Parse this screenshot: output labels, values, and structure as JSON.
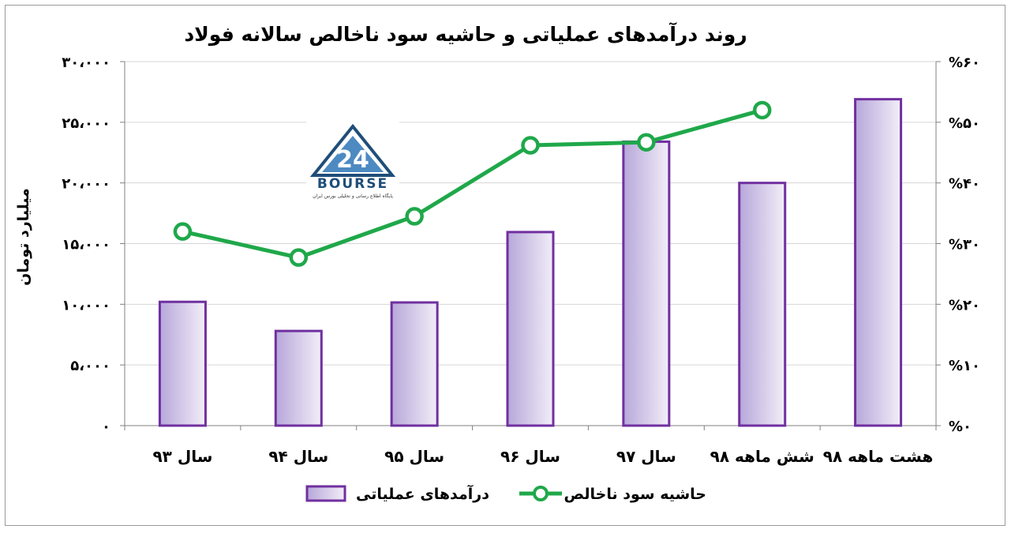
{
  "chart_data": {
    "type": "bar+line",
    "title": "روند درآمدهای عملیاتی و حاشیه سود ناخالص سالانه فولاد",
    "ylabel_left": "میلیارد تومان",
    "ylabel_right": "",
    "categories": [
      "سال ۹۳",
      "سال ۹۴",
      "سال ۹۵",
      "سال ۹۶",
      "سال ۹۷",
      "شش ماهه ۹۸",
      "هشت ماهه ۹۸"
    ],
    "left_ticks": [
      "۰",
      "۵،۰۰۰",
      "۱۰،۰۰۰",
      "۱۵،۰۰۰",
      "۲۰،۰۰۰",
      "۲۵،۰۰۰",
      "۳۰،۰۰۰"
    ],
    "right_ticks": [
      "%۰",
      "%۱۰",
      "%۲۰",
      "%۳۰",
      "%۴۰",
      "%۵۰",
      "%۶۰"
    ],
    "ylim_left": [
      0,
      30000
    ],
    "ylim_right": [
      0,
      0.6
    ],
    "grid": true,
    "legend_position": "bottom",
    "series": [
      {
        "name": "درآمدهای عملیاتی",
        "type": "bar",
        "axis": "left",
        "values": [
          10200,
          7800,
          10150,
          15950,
          23400,
          20000,
          26900
        ]
      },
      {
        "name": "حاشیه سود ناخالص",
        "type": "line",
        "axis": "right",
        "values": [
          0.32,
          0.277,
          0.345,
          0.462,
          0.467,
          0.52,
          null
        ]
      }
    ],
    "colors": {
      "bar_border": "#7030a0",
      "bar_fill_light": "#f2eef8",
      "bar_fill_dark": "#b7a7da",
      "line": "#1fa84a",
      "marker_fill": "#ffffff",
      "grid": "#d6d6d6",
      "axis": "#808080"
    }
  },
  "watermark": {
    "logo_text": "BOURSE",
    "caption": "پایگاه اطلاع رسانی و تحلیلی بورس ایران"
  }
}
